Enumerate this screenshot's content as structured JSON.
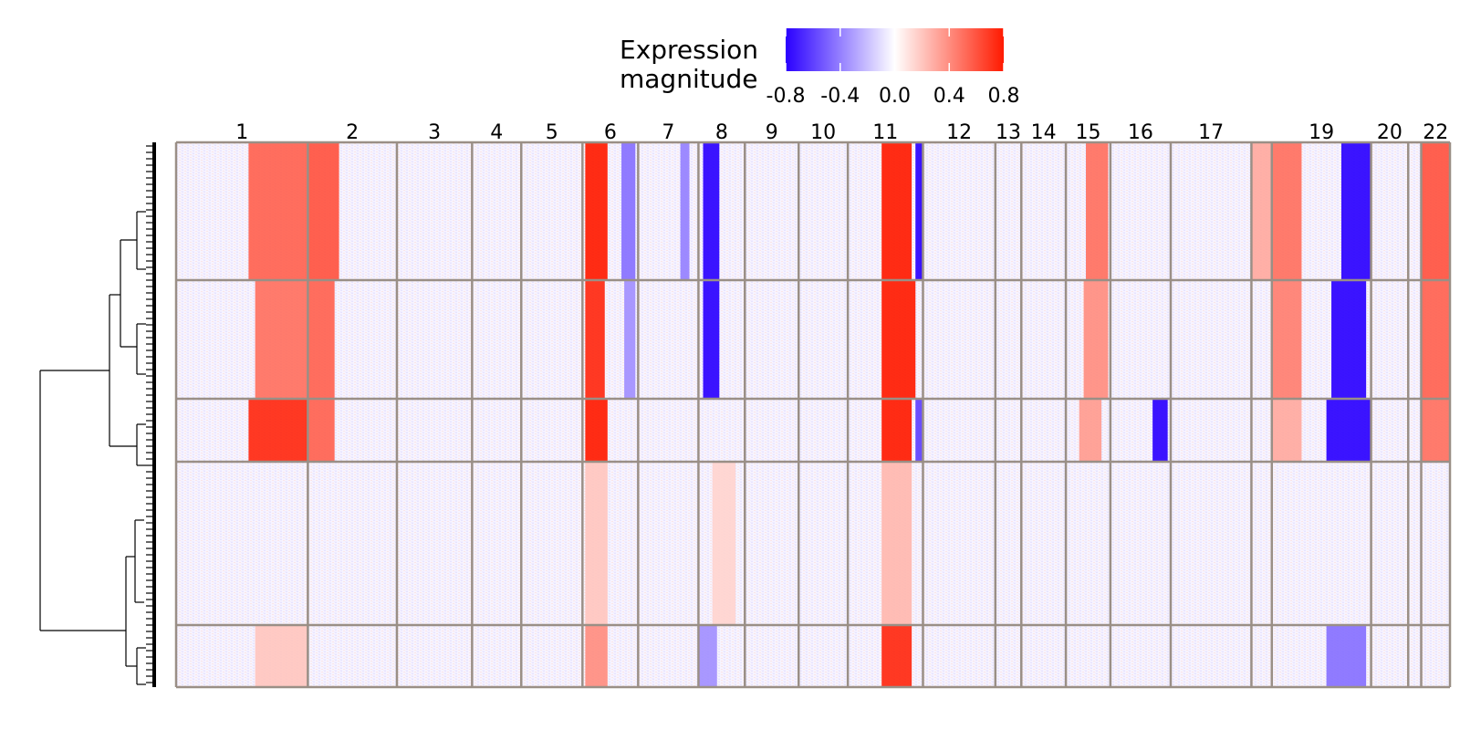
{
  "chart_data": {
    "type": "heatmap",
    "legend": {
      "title_line1": "Expression",
      "title_line2": "magnitude",
      "ticks": [
        "-0.8",
        "-0.4",
        "0.0",
        "0.4",
        "0.8"
      ],
      "range": [
        -0.8,
        0.8
      ],
      "colors": {
        "low": "#2a00ff",
        "mid": "#ffffff",
        "high": "#ff1a00"
      }
    },
    "chromosomes": [
      {
        "label": "1",
        "width": 142
      },
      {
        "label": "2",
        "width": 96
      },
      {
        "label": "3",
        "width": 81
      },
      {
        "label": "4",
        "width": 53
      },
      {
        "label": "5",
        "width": 66
      },
      {
        "label": "6",
        "width": 60
      },
      {
        "label": "7",
        "width": 65
      },
      {
        "label": "8",
        "width": 50
      },
      {
        "label": "9",
        "width": 58
      },
      {
        "label": "10",
        "width": 53
      },
      {
        "label": "11",
        "width": 81
      },
      {
        "label": "12",
        "width": 78
      },
      {
        "label": "13",
        "width": 28
      },
      {
        "label": "14",
        "width": 48
      },
      {
        "label": "15",
        "width": 48
      },
      {
        "label": "16",
        "width": 65
      },
      {
        "label": "17",
        "width": 87
      },
      {
        "label": "",
        "width": 22
      },
      {
        "label": "19",
        "width": 107
      },
      {
        "label": "20",
        "width": 40
      },
      {
        "label": "",
        "width": 14
      },
      {
        "label": "22",
        "width": 31
      }
    ],
    "clusters": [
      {
        "name": "1",
        "height": 151
      },
      {
        "name": "2",
        "height": 130
      },
      {
        "name": "3",
        "height": 69
      },
      {
        "name": "4",
        "height": 179
      },
      {
        "name": "5",
        "height": 68
      }
    ],
    "signals": [
      {
        "cluster": 0,
        "chrom": 0,
        "from": 0.55,
        "to": 1.0,
        "value": 0.55
      },
      {
        "cluster": 0,
        "chrom": 1,
        "from": 0.0,
        "to": 0.35,
        "value": 0.6
      },
      {
        "cluster": 0,
        "chrom": 5,
        "from": 0.05,
        "to": 0.45,
        "value": 0.85
      },
      {
        "cluster": 0,
        "chrom": 5,
        "from": 0.7,
        "to": 0.95,
        "value": -0.45
      },
      {
        "cluster": 0,
        "chrom": 6,
        "from": 0.7,
        "to": 0.85,
        "value": -0.4
      },
      {
        "cluster": 0,
        "chrom": 7,
        "from": 0.1,
        "to": 0.45,
        "value": -0.9
      },
      {
        "cluster": 0,
        "chrom": 10,
        "from": 0.45,
        "to": 0.85,
        "value": 0.95
      },
      {
        "cluster": 0,
        "chrom": 10,
        "from": 0.9,
        "to": 1.0,
        "value": -0.8
      },
      {
        "cluster": 0,
        "chrom": 14,
        "from": 0.45,
        "to": 0.95,
        "value": 0.5
      },
      {
        "cluster": 0,
        "chrom": 17,
        "from": 0.0,
        "to": 1.0,
        "value": 0.3
      },
      {
        "cluster": 0,
        "chrom": 18,
        "from": 0.0,
        "to": 0.3,
        "value": 0.5
      },
      {
        "cluster": 0,
        "chrom": 18,
        "from": 0.7,
        "to": 1.0,
        "value": -0.95
      },
      {
        "cluster": 0,
        "chrom": 21,
        "from": 0.0,
        "to": 1.0,
        "value": 0.6
      },
      {
        "cluster": 1,
        "chrom": 0,
        "from": 0.6,
        "to": 1.0,
        "value": 0.5
      },
      {
        "cluster": 1,
        "chrom": 1,
        "from": 0.0,
        "to": 0.3,
        "value": 0.55
      },
      {
        "cluster": 1,
        "chrom": 5,
        "from": 0.05,
        "to": 0.4,
        "value": 0.75
      },
      {
        "cluster": 1,
        "chrom": 5,
        "from": 0.75,
        "to": 0.95,
        "value": -0.35
      },
      {
        "cluster": 1,
        "chrom": 7,
        "from": 0.1,
        "to": 0.45,
        "value": -0.85
      },
      {
        "cluster": 1,
        "chrom": 10,
        "from": 0.45,
        "to": 0.9,
        "value": 0.9
      },
      {
        "cluster": 1,
        "chrom": 14,
        "from": 0.4,
        "to": 0.95,
        "value": 0.4
      },
      {
        "cluster": 1,
        "chrom": 18,
        "from": 0.0,
        "to": 0.3,
        "value": 0.45
      },
      {
        "cluster": 1,
        "chrom": 18,
        "from": 0.6,
        "to": 0.95,
        "value": -0.85
      },
      {
        "cluster": 1,
        "chrom": 21,
        "from": 0.0,
        "to": 1.0,
        "value": 0.55
      },
      {
        "cluster": 2,
        "chrom": 0,
        "from": 0.55,
        "to": 1.0,
        "value": 0.75
      },
      {
        "cluster": 2,
        "chrom": 1,
        "from": 0.0,
        "to": 0.3,
        "value": 0.55
      },
      {
        "cluster": 2,
        "chrom": 5,
        "from": 0.05,
        "to": 0.45,
        "value": 0.8
      },
      {
        "cluster": 2,
        "chrom": 10,
        "from": 0.45,
        "to": 0.85,
        "value": 0.8
      },
      {
        "cluster": 2,
        "chrom": 10,
        "from": 0.9,
        "to": 1.0,
        "value": -0.6
      },
      {
        "cluster": 2,
        "chrom": 14,
        "from": 0.3,
        "to": 0.8,
        "value": 0.35
      },
      {
        "cluster": 2,
        "chrom": 15,
        "from": 0.7,
        "to": 0.95,
        "value": -0.85
      },
      {
        "cluster": 2,
        "chrom": 18,
        "from": 0.0,
        "to": 0.3,
        "value": 0.3
      },
      {
        "cluster": 2,
        "chrom": 18,
        "from": 0.55,
        "to": 1.0,
        "value": -0.95
      },
      {
        "cluster": 2,
        "chrom": 21,
        "from": 0.0,
        "to": 1.0,
        "value": 0.5
      },
      {
        "cluster": 3,
        "chrom": 5,
        "from": 0.05,
        "to": 0.45,
        "value": 0.2
      },
      {
        "cluster": 3,
        "chrom": 10,
        "from": 0.45,
        "to": 0.85,
        "value": 0.25
      },
      {
        "cluster": 3,
        "chrom": 7,
        "from": 0.3,
        "to": 0.8,
        "value": 0.15
      },
      {
        "cluster": 4,
        "chrom": 0,
        "from": 0.6,
        "to": 1.0,
        "value": 0.2
      },
      {
        "cluster": 4,
        "chrom": 5,
        "from": 0.05,
        "to": 0.45,
        "value": 0.4
      },
      {
        "cluster": 4,
        "chrom": 7,
        "from": 0.0,
        "to": 0.4,
        "value": -0.35
      },
      {
        "cluster": 4,
        "chrom": 10,
        "from": 0.45,
        "to": 0.85,
        "value": 0.75
      },
      {
        "cluster": 4,
        "chrom": 18,
        "from": 0.55,
        "to": 0.95,
        "value": -0.45
      }
    ]
  }
}
